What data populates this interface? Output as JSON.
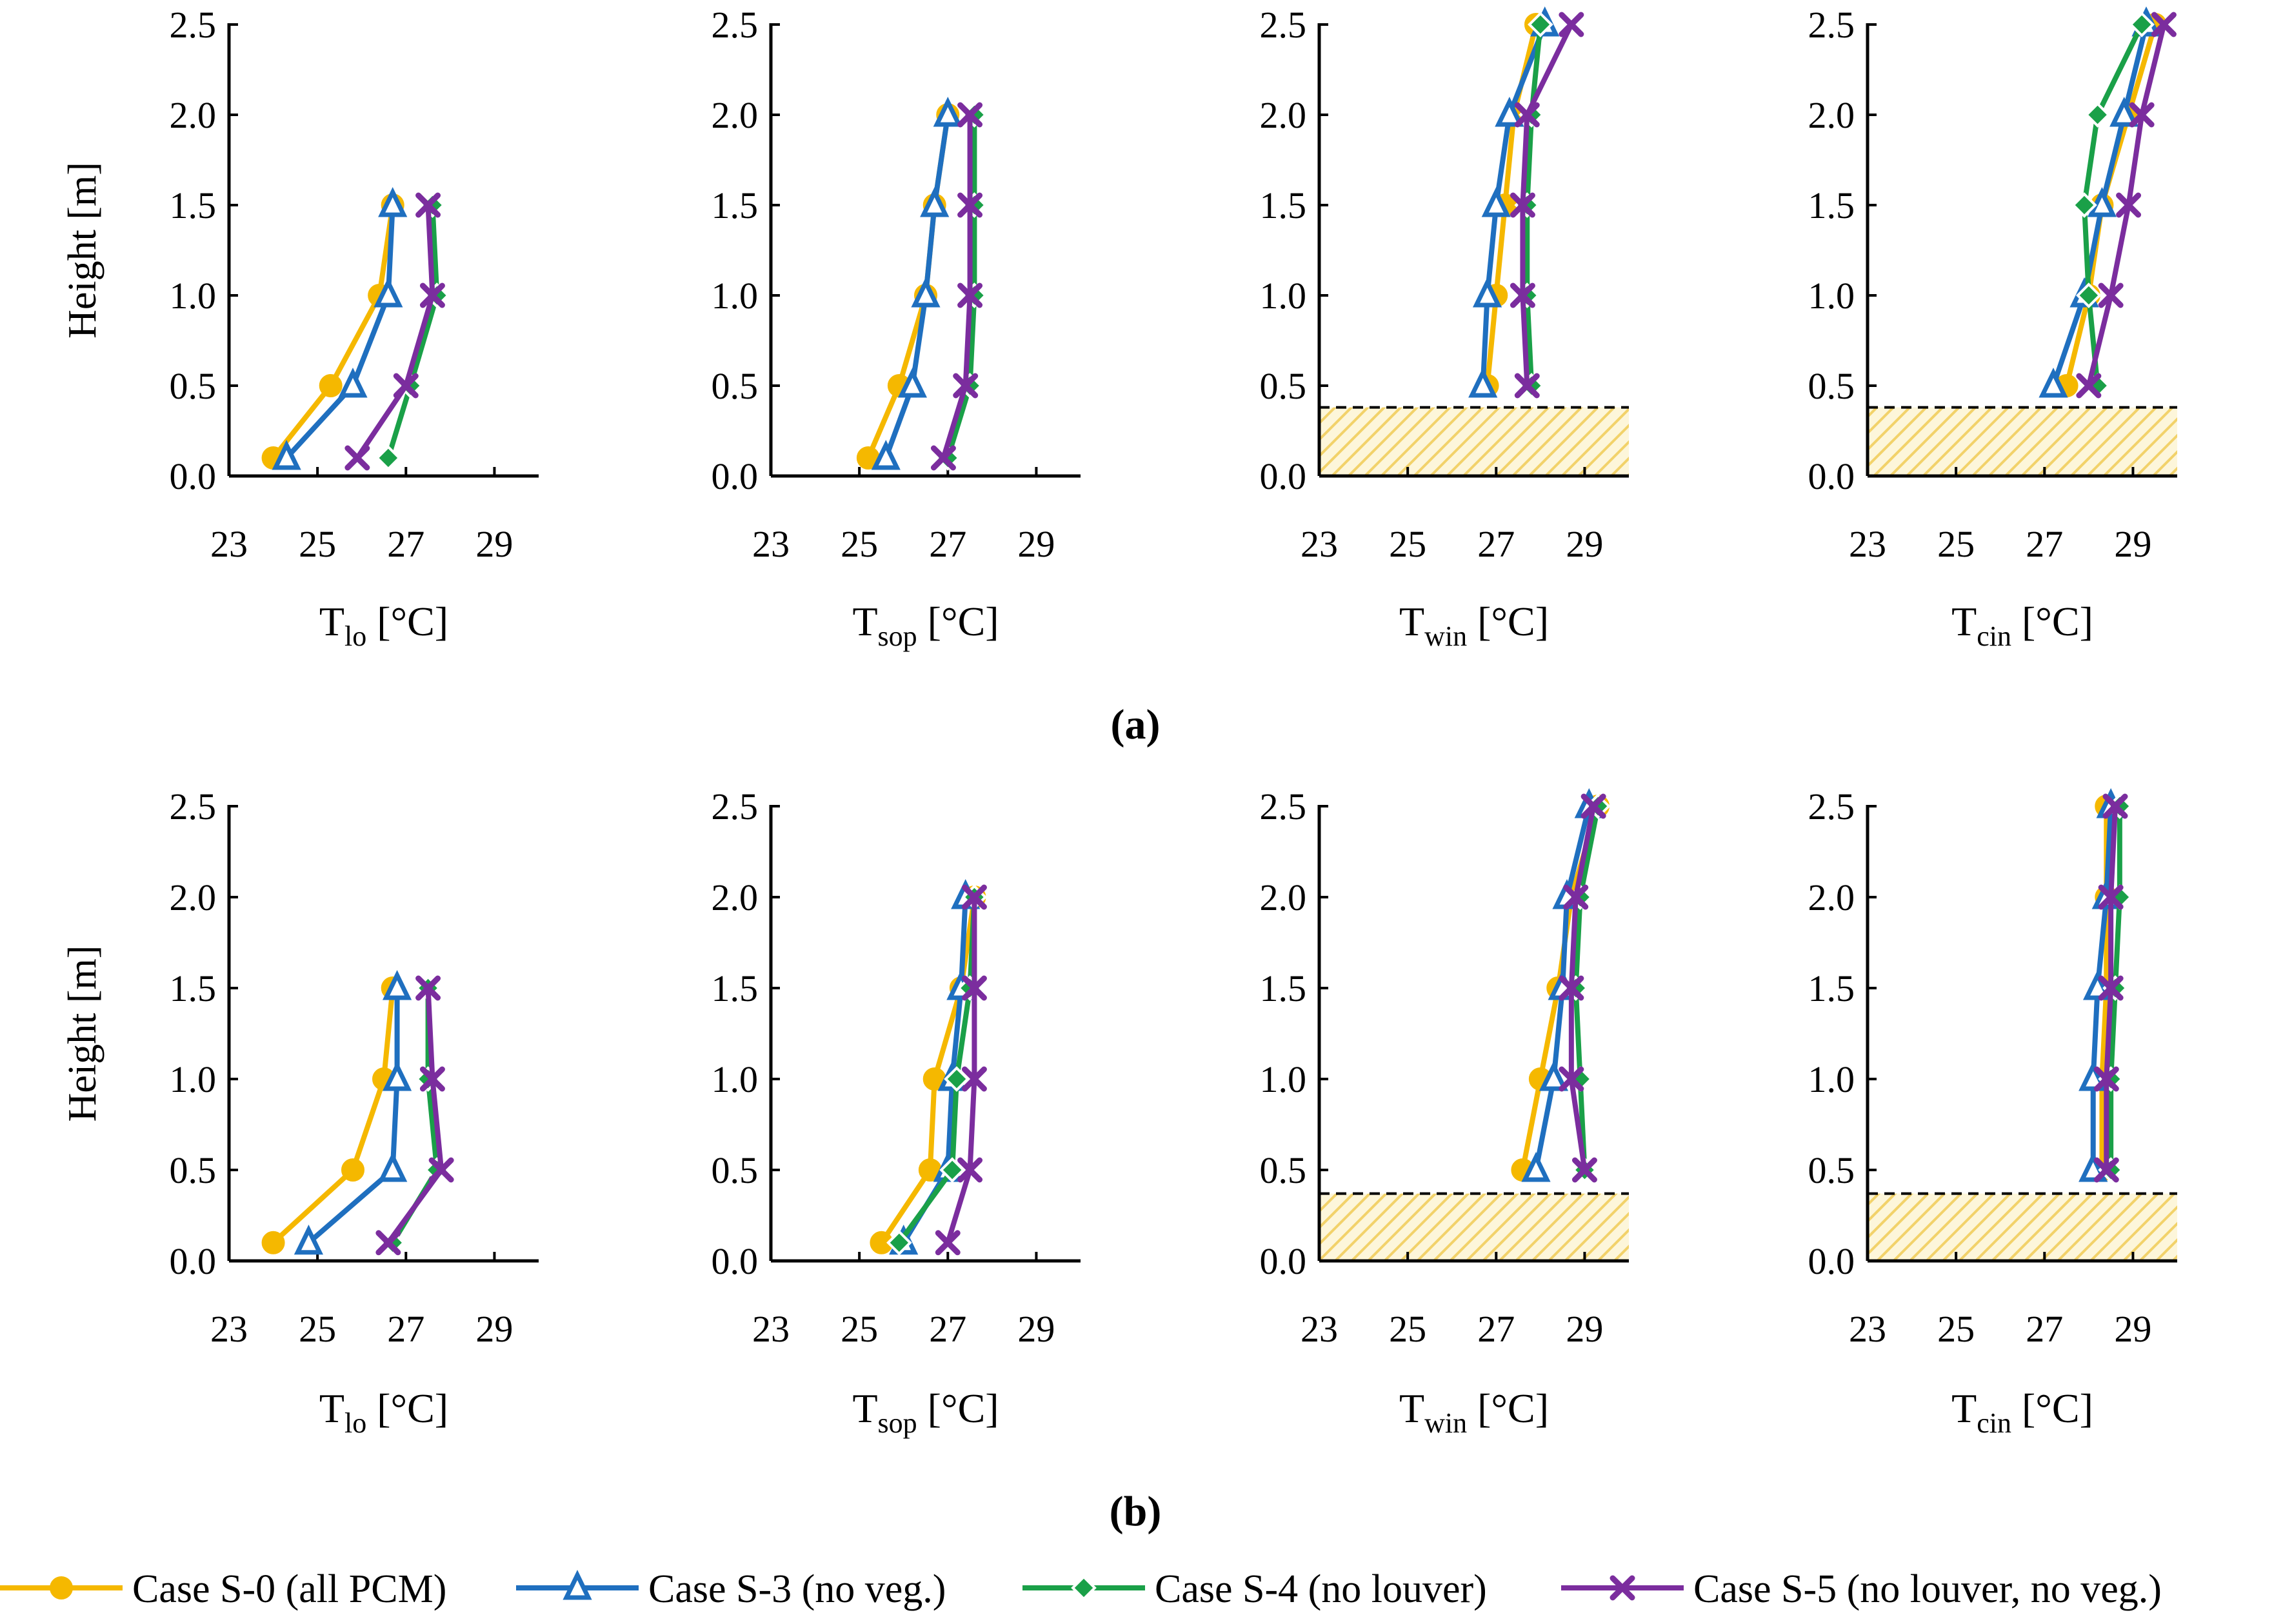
{
  "legend": [
    {
      "name": "Case S-0 (all PCM)",
      "color": "#F5B800",
      "marker": "circle"
    },
    {
      "name": "Case S-3 (no veg.)",
      "color": "#1F6FBF",
      "marker": "triangle"
    },
    {
      "name": "Case S-4 (no louver)",
      "color": "#1AA048",
      "marker": "diamond"
    },
    {
      "name": "Case S-5 (no louver, no veg.)",
      "color": "#7B2D9E",
      "marker": "cross"
    }
  ],
  "panel_labels": [
    "(a)",
    "(b)"
  ],
  "y_axis_label": "Height [m]",
  "colors": {
    "S-0": "#F5B800",
    "S-3": "#1F6FBF",
    "S-4": "#1AA048",
    "S-5": "#7B2D9E",
    "hatch": "#F2D26A"
  },
  "chart_data": [
    {
      "type": "line",
      "row": "(a)",
      "x_symbol": "T",
      "x_subscript": "lo",
      "x_unit": "[°C]",
      "ylabel": "Height [m]",
      "xlim": [
        23,
        30
      ],
      "ylim": [
        0,
        2.5
      ],
      "x_ticks": [
        "23",
        "25",
        "27",
        "29"
      ],
      "y_ticks": [
        "0.0",
        "0.5",
        "1.0",
        "1.5",
        "2.0",
        "2.5"
      ],
      "shaded_region": null,
      "series": [
        {
          "name": "Case S-0 (all PCM)",
          "heights": [
            0.1,
            0.5,
            1.0,
            1.5
          ],
          "temps": [
            24.0,
            25.3,
            26.4,
            26.7
          ]
        },
        {
          "name": "Case S-3 (no veg.)",
          "heights": [
            0.1,
            0.5,
            1.0,
            1.5
          ],
          "temps": [
            24.3,
            25.8,
            26.6,
            26.7
          ]
        },
        {
          "name": "Case S-4 (no louver)",
          "heights": [
            0.1,
            0.5,
            1.0,
            1.5
          ],
          "temps": [
            26.6,
            27.1,
            27.7,
            27.6
          ]
        },
        {
          "name": "Case S-5 (no louver, no veg.)",
          "heights": [
            0.1,
            0.5,
            1.0,
            1.5
          ],
          "temps": [
            25.9,
            27.0,
            27.6,
            27.5
          ]
        }
      ]
    },
    {
      "type": "line",
      "row": "(a)",
      "x_symbol": "T",
      "x_subscript": "sop",
      "x_unit": "[°C]",
      "ylabel": "",
      "xlim": [
        23,
        30
      ],
      "ylim": [
        0,
        2.5
      ],
      "x_ticks": [
        "23",
        "25",
        "27",
        "29"
      ],
      "y_ticks": [
        "0.0",
        "0.5",
        "1.0",
        "1.5",
        "2.0",
        "2.5"
      ],
      "shaded_region": null,
      "series": [
        {
          "name": "Case S-0 (all PCM)",
          "heights": [
            0.1,
            0.5,
            1.0,
            1.5,
            2.0
          ],
          "temps": [
            25.2,
            25.9,
            26.5,
            26.7,
            27.0
          ]
        },
        {
          "name": "Case S-3 (no veg.)",
          "heights": [
            0.1,
            0.5,
            1.0,
            1.5,
            2.0
          ],
          "temps": [
            25.6,
            26.2,
            26.5,
            26.7,
            27.0
          ]
        },
        {
          "name": "Case S-4 (no louver)",
          "heights": [
            0.1,
            0.5,
            1.0,
            1.5,
            2.0
          ],
          "temps": [
            27.0,
            27.5,
            27.6,
            27.6,
            27.6
          ]
        },
        {
          "name": "Case S-5 (no louver, no veg.)",
          "heights": [
            0.1,
            0.5,
            1.0,
            1.5,
            2.0
          ],
          "temps": [
            26.9,
            27.4,
            27.5,
            27.5,
            27.5
          ]
        }
      ]
    },
    {
      "type": "line",
      "row": "(a)",
      "x_symbol": "T",
      "x_subscript": "win",
      "x_unit": "[°C]",
      "ylabel": "",
      "xlim": [
        23,
        30
      ],
      "ylim": [
        0,
        2.5
      ],
      "x_ticks": [
        "23",
        "25",
        "27",
        "29"
      ],
      "y_ticks": [
        "0.0",
        "0.5",
        "1.0",
        "1.5",
        "2.0",
        "2.5"
      ],
      "shaded_region": [
        0,
        0.38
      ],
      "series": [
        {
          "name": "Case S-0 (all PCM)",
          "heights": [
            0.5,
            1.0,
            1.5,
            2.0,
            2.5
          ],
          "temps": [
            26.8,
            27.0,
            27.2,
            27.4,
            27.9
          ]
        },
        {
          "name": "Case S-3 (no veg.)",
          "heights": [
            0.5,
            1.0,
            1.5,
            2.0,
            2.5
          ],
          "temps": [
            26.7,
            26.8,
            27.0,
            27.3,
            28.1
          ]
        },
        {
          "name": "Case S-4 (no louver)",
          "heights": [
            0.5,
            1.0,
            1.5,
            2.0,
            2.5
          ],
          "temps": [
            27.8,
            27.7,
            27.7,
            27.8,
            28.0
          ]
        },
        {
          "name": "Case S-5 (no louver, no veg.)",
          "heights": [
            0.5,
            1.0,
            1.5,
            2.0,
            2.5
          ],
          "temps": [
            27.7,
            27.6,
            27.6,
            27.7,
            28.7
          ]
        }
      ]
    },
    {
      "type": "line",
      "row": "(a)",
      "x_symbol": "T",
      "x_subscript": "cin",
      "x_unit": "[°C]",
      "ylabel": "",
      "xlim": [
        23,
        30
      ],
      "ylim": [
        0,
        2.5
      ],
      "x_ticks": [
        "23",
        "25",
        "27",
        "29"
      ],
      "y_ticks": [
        "0.0",
        "0.5",
        "1.0",
        "1.5",
        "2.0",
        "2.5"
      ],
      "shaded_region": [
        0,
        0.38
      ],
      "series": [
        {
          "name": "Case S-0 (all PCM)",
          "heights": [
            0.5,
            1.0,
            1.5,
            2.0,
            2.5
          ],
          "temps": [
            27.5,
            28.0,
            28.3,
            28.9,
            29.5
          ]
        },
        {
          "name": "Case S-3 (no veg.)",
          "heights": [
            0.5,
            1.0,
            1.5,
            2.0,
            2.5
          ],
          "temps": [
            27.2,
            27.9,
            28.3,
            28.8,
            29.3
          ]
        },
        {
          "name": "Case S-4 (no louver)",
          "heights": [
            0.5,
            1.0,
            1.5,
            2.0,
            2.5
          ],
          "temps": [
            28.2,
            28.0,
            27.9,
            28.2,
            29.2
          ]
        },
        {
          "name": "Case S-5 (no louver, no veg.)",
          "heights": [
            0.5,
            1.0,
            1.5,
            2.0,
            2.5
          ],
          "temps": [
            28.0,
            28.5,
            28.9,
            29.2,
            29.7
          ]
        }
      ]
    },
    {
      "type": "line",
      "row": "(b)",
      "x_symbol": "T",
      "x_subscript": "lo",
      "x_unit": "[°C]",
      "ylabel": "Height [m]",
      "xlim": [
        23,
        30
      ],
      "ylim": [
        0,
        2.5
      ],
      "x_ticks": [
        "23",
        "25",
        "27",
        "29"
      ],
      "y_ticks": [
        "0.0",
        "0.5",
        "1.0",
        "1.5",
        "2.0",
        "2.5"
      ],
      "shaded_region": null,
      "series": [
        {
          "name": "Case S-0 (all PCM)",
          "heights": [
            0.1,
            0.5,
            1.0,
            1.5
          ],
          "temps": [
            24.0,
            25.8,
            26.5,
            26.7
          ]
        },
        {
          "name": "Case S-3 (no veg.)",
          "heights": [
            0.1,
            0.5,
            1.0,
            1.5
          ],
          "temps": [
            24.8,
            26.7,
            26.8,
            26.8
          ]
        },
        {
          "name": "Case S-4 (no louver)",
          "heights": [
            0.1,
            0.5,
            1.0,
            1.5
          ],
          "temps": [
            26.7,
            27.7,
            27.5,
            27.5
          ]
        },
        {
          "name": "Case S-5 (no louver, no veg.)",
          "heights": [
            0.1,
            0.5,
            1.0,
            1.5
          ],
          "temps": [
            26.6,
            27.8,
            27.6,
            27.5
          ]
        }
      ]
    },
    {
      "type": "line",
      "row": "(b)",
      "x_symbol": "T",
      "x_subscript": "sop",
      "x_unit": "[°C]",
      "ylabel": "",
      "xlim": [
        23,
        30
      ],
      "ylim": [
        0,
        2.5
      ],
      "x_ticks": [
        "23",
        "25",
        "27",
        "29"
      ],
      "y_ticks": [
        "0.0",
        "0.5",
        "1.0",
        "1.5",
        "2.0",
        "2.5"
      ],
      "shaded_region": null,
      "series": [
        {
          "name": "Case S-0 (all PCM)",
          "heights": [
            0.1,
            0.5,
            1.0,
            1.5,
            2.0
          ],
          "temps": [
            25.5,
            26.6,
            26.7,
            27.3,
            27.6
          ]
        },
        {
          "name": "Case S-3 (no veg.)",
          "heights": [
            0.1,
            0.5,
            1.0,
            1.5,
            2.0
          ],
          "temps": [
            26.0,
            27.0,
            27.1,
            27.3,
            27.4
          ]
        },
        {
          "name": "Case S-4 (no louver)",
          "heights": [
            0.1,
            0.5,
            1.0,
            1.5,
            2.0
          ],
          "temps": [
            25.9,
            27.1,
            27.2,
            27.5,
            27.6
          ]
        },
        {
          "name": "Case S-5 (no louver, no veg.)",
          "heights": [
            0.1,
            0.5,
            1.0,
            1.5,
            2.0
          ],
          "temps": [
            27.0,
            27.5,
            27.6,
            27.6,
            27.6
          ]
        }
      ]
    },
    {
      "type": "line",
      "row": "(b)",
      "x_symbol": "T",
      "x_subscript": "win",
      "x_unit": "[°C]",
      "ylabel": "",
      "xlim": [
        23,
        30
      ],
      "ylim": [
        0,
        2.5
      ],
      "x_ticks": [
        "23",
        "25",
        "27",
        "29"
      ],
      "y_ticks": [
        "0.0",
        "0.5",
        "1.0",
        "1.5",
        "2.0",
        "2.5"
      ],
      "shaded_region": [
        0,
        0.37
      ],
      "series": [
        {
          "name": "Case S-0 (all PCM)",
          "heights": [
            0.5,
            1.0,
            1.5,
            2.0,
            2.5
          ],
          "temps": [
            27.6,
            28.0,
            28.4,
            28.7,
            29.3
          ]
        },
        {
          "name": "Case S-3 (no veg.)",
          "heights": [
            0.5,
            1.0,
            1.5,
            2.0,
            2.5
          ],
          "temps": [
            27.9,
            28.3,
            28.5,
            28.6,
            29.1
          ]
        },
        {
          "name": "Case S-4 (no louver)",
          "heights": [
            0.5,
            1.0,
            1.5,
            2.0,
            2.5
          ],
          "temps": [
            29.0,
            28.9,
            28.8,
            28.9,
            29.3
          ]
        },
        {
          "name": "Case S-5 (no louver, no veg.)",
          "heights": [
            0.5,
            1.0,
            1.5,
            2.0,
            2.5
          ],
          "temps": [
            29.0,
            28.7,
            28.7,
            28.8,
            29.2
          ]
        }
      ]
    },
    {
      "type": "line",
      "row": "(b)",
      "x_symbol": "T",
      "x_subscript": "cin",
      "x_unit": "[°C]",
      "ylabel": "",
      "xlim": [
        23,
        30
      ],
      "ylim": [
        0,
        2.5
      ],
      "x_ticks": [
        "23",
        "25",
        "27",
        "29"
      ],
      "y_ticks": [
        "0.0",
        "0.5",
        "1.0",
        "1.5",
        "2.0",
        "2.5"
      ],
      "shaded_region": [
        0,
        0.37
      ],
      "series": [
        {
          "name": "Case S-0 (all PCM)",
          "heights": [
            0.5,
            1.0,
            1.5,
            2.0,
            2.5
          ],
          "temps": [
            28.3,
            28.3,
            28.4,
            28.4,
            28.4
          ]
        },
        {
          "name": "Case S-3 (no veg.)",
          "heights": [
            0.5,
            1.0,
            1.5,
            2.0,
            2.5
          ],
          "temps": [
            28.1,
            28.1,
            28.2,
            28.4,
            28.5
          ]
        },
        {
          "name": "Case S-4 (no louver)",
          "heights": [
            0.5,
            1.0,
            1.5,
            2.0,
            2.5
          ],
          "temps": [
            28.5,
            28.5,
            28.6,
            28.7,
            28.7
          ]
        },
        {
          "name": "Case S-5 (no louver, no veg.)",
          "heights": [
            0.5,
            1.0,
            1.5,
            2.0,
            2.5
          ],
          "temps": [
            28.4,
            28.4,
            28.5,
            28.5,
            28.6
          ]
        }
      ]
    }
  ]
}
